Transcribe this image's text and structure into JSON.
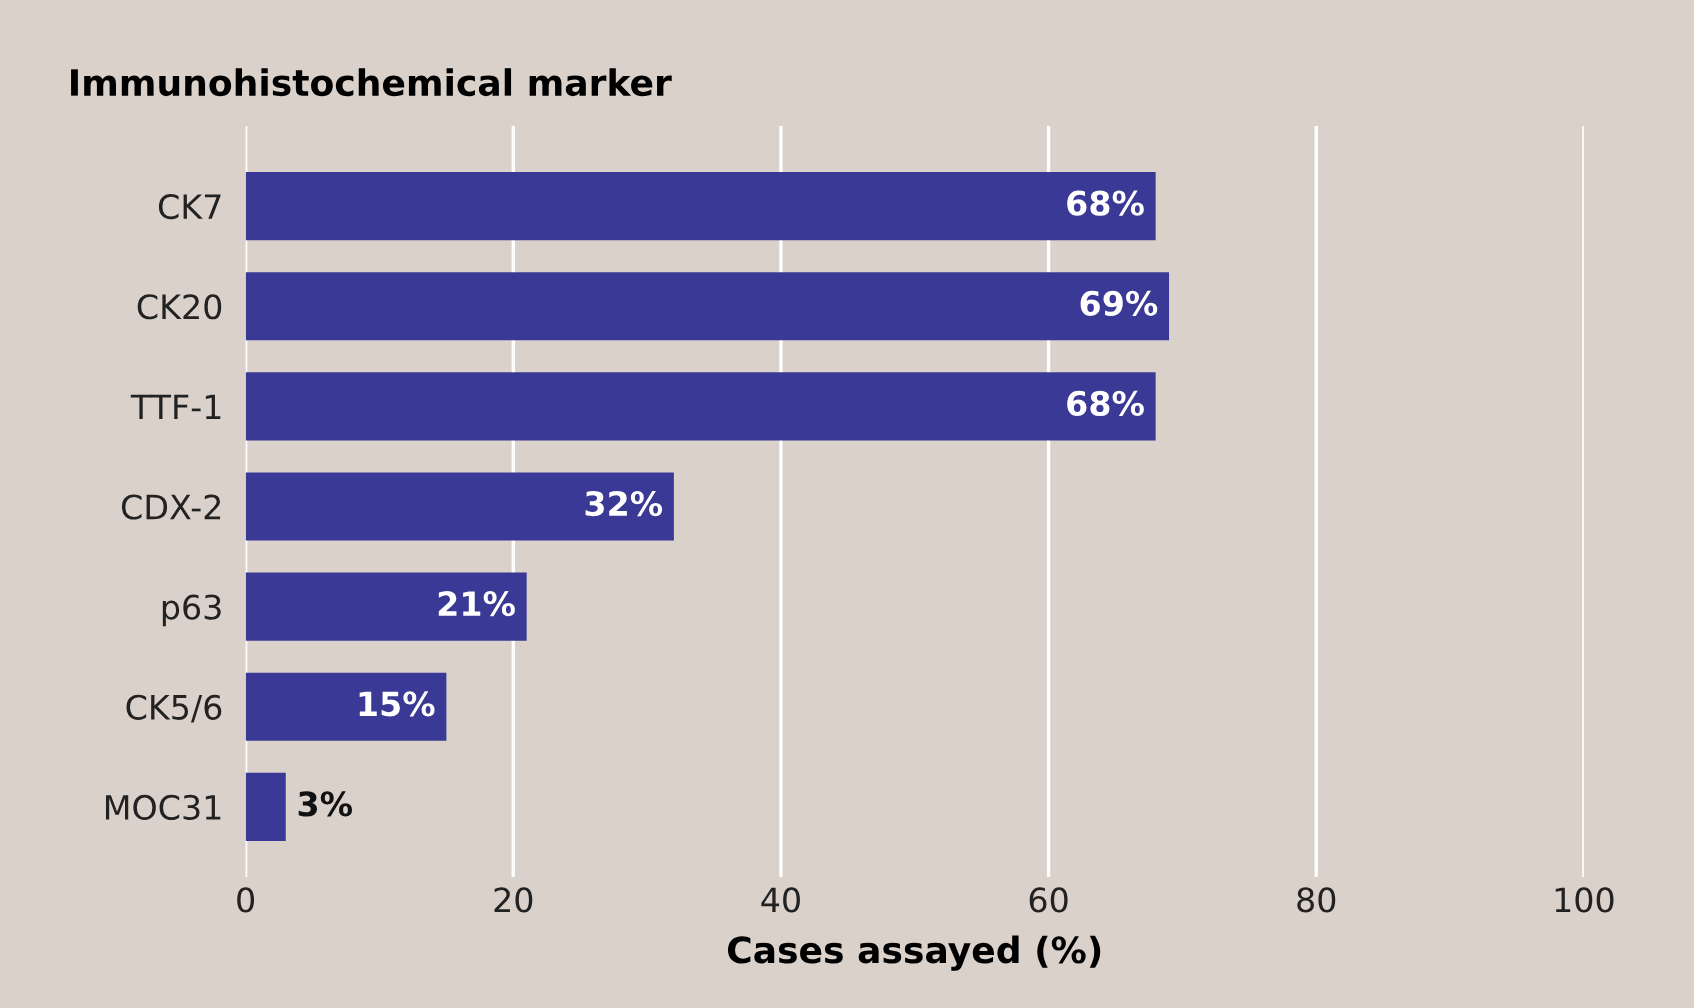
{
  "chart_data": {
    "type": "bar",
    "orientation": "horizontal",
    "title": "Immunohistochemical marker",
    "xlabel": "Cases assayed (%)",
    "categories": [
      "CK7",
      "CK20",
      "TTF-1",
      "CDX-2",
      "p63",
      "CK5/6",
      "MOC31"
    ],
    "values": [
      68,
      69,
      68,
      32,
      21,
      15,
      3
    ],
    "color": "#3a3995",
    "xlim": [
      0,
      100
    ],
    "xticks": [
      0,
      20,
      40,
      60,
      80,
      100
    ],
    "grid": "x",
    "value_labels": [
      "68%",
      "69%",
      "68%",
      "32%",
      "21%",
      "15%",
      "3%"
    ]
  }
}
